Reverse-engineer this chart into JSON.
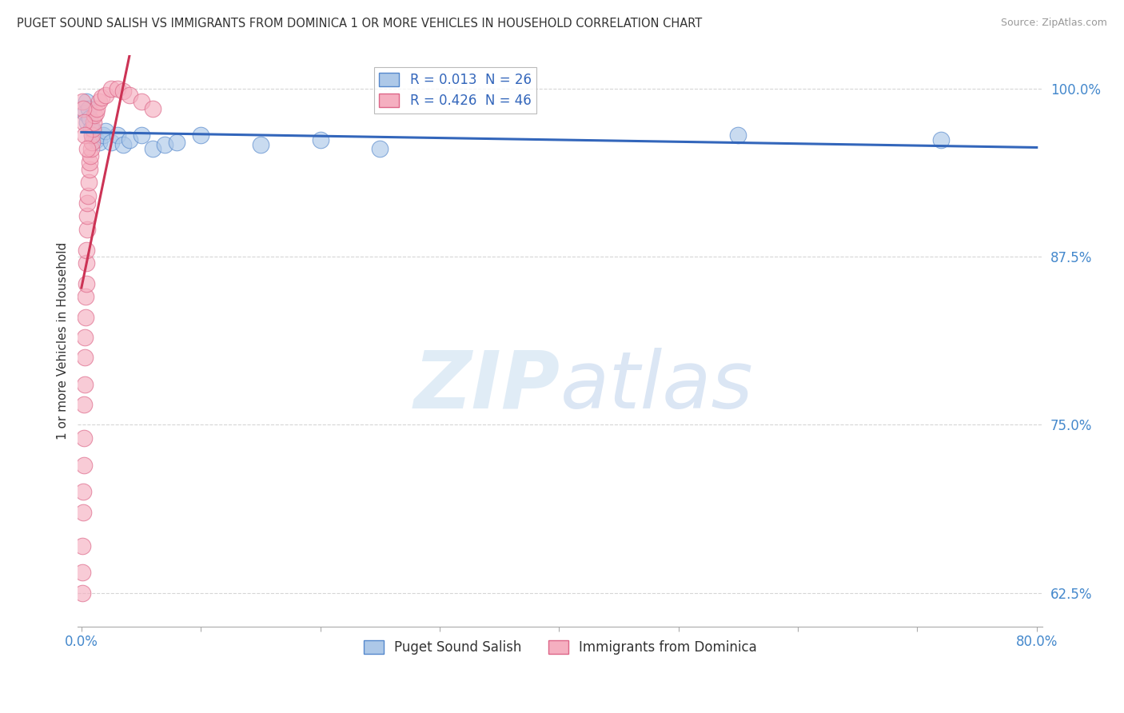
{
  "title": "PUGET SOUND SALISH VS IMMIGRANTS FROM DOMINICA 1 OR MORE VEHICLES IN HOUSEHOLD CORRELATION CHART",
  "source": "Source: ZipAtlas.com",
  "ylabel": "1 or more Vehicles in Household",
  "xlim": [
    0.0,
    80.0
  ],
  "ylim": [
    60.0,
    102.5
  ],
  "xticks": [
    0.0,
    10.0,
    20.0,
    30.0,
    40.0,
    50.0,
    60.0,
    70.0,
    80.0
  ],
  "yticks": [
    62.5,
    75.0,
    87.5,
    100.0
  ],
  "yticklabels": [
    "62.5%",
    "75.0%",
    "87.5%",
    "100.0%"
  ],
  "blue_R": 0.013,
  "blue_N": 26,
  "pink_R": 0.426,
  "pink_N": 46,
  "blue_color": "#adc8e8",
  "pink_color": "#f5afc0",
  "blue_edge_color": "#5588cc",
  "pink_edge_color": "#dd6688",
  "blue_line_color": "#3366bb",
  "pink_line_color": "#cc3355",
  "legend_label_blue": "Puget Sound Salish",
  "legend_label_pink": "Immigrants from Dominica",
  "watermark_zip": "ZIP",
  "watermark_atlas": "atlas",
  "blue_x": [
    0.3,
    0.4,
    0.5,
    0.6,
    0.7,
    0.8,
    0.9,
    1.0,
    1.2,
    1.5,
    1.8,
    2.0,
    2.5,
    3.0,
    3.5,
    4.0,
    5.0,
    6.0,
    7.0,
    8.0,
    10.0,
    15.0,
    20.0,
    25.0,
    55.0,
    72.0
  ],
  "blue_y": [
    98.2,
    99.0,
    97.5,
    98.5,
    97.8,
    97.0,
    96.5,
    96.8,
    96.2,
    96.0,
    96.5,
    96.8,
    96.0,
    96.5,
    95.8,
    96.2,
    96.5,
    95.5,
    95.8,
    96.0,
    96.5,
    95.8,
    96.2,
    95.5,
    96.5,
    96.2
  ],
  "pink_x": [
    0.05,
    0.08,
    0.1,
    0.12,
    0.15,
    0.18,
    0.2,
    0.22,
    0.25,
    0.28,
    0.3,
    0.32,
    0.35,
    0.38,
    0.4,
    0.42,
    0.45,
    0.48,
    0.5,
    0.55,
    0.6,
    0.65,
    0.7,
    0.75,
    0.8,
    0.85,
    0.9,
    0.95,
    1.0,
    1.1,
    1.2,
    1.3,
    1.5,
    1.7,
    2.0,
    2.5,
    3.0,
    3.5,
    4.0,
    5.0,
    6.0,
    0.1,
    0.15,
    0.2,
    0.3,
    0.5
  ],
  "pink_y": [
    62.5,
    64.0,
    66.0,
    68.5,
    70.0,
    72.0,
    74.0,
    76.5,
    78.0,
    80.0,
    81.5,
    83.0,
    84.5,
    85.5,
    87.0,
    88.0,
    89.5,
    90.5,
    91.5,
    92.0,
    93.0,
    94.0,
    94.5,
    95.0,
    95.5,
    96.0,
    96.5,
    97.0,
    97.5,
    98.0,
    98.2,
    98.5,
    99.0,
    99.3,
    99.5,
    100.0,
    100.0,
    99.8,
    99.5,
    99.0,
    98.5,
    99.0,
    98.5,
    97.5,
    96.5,
    95.5
  ]
}
